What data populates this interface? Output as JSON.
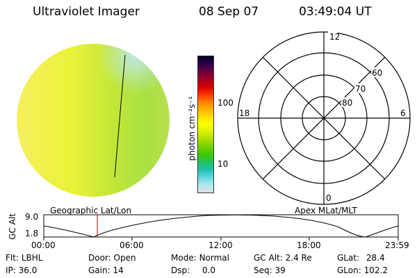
{
  "header": {
    "instrument": "Ultraviolet Imager",
    "date": "08 Sep 07",
    "time": "03:49:04 UT"
  },
  "colorbar": {
    "label": "photon cm⁻²s⁻¹",
    "ticks": [
      "100",
      "10"
    ],
    "colors": [
      "#000020",
      "#2a004a",
      "#6a0040",
      "#a00020",
      "#d00000",
      "#ff3000",
      "#ff8000",
      "#ffb000",
      "#ffe000",
      "#ffff00",
      "#d8f000",
      "#a8e000",
      "#70d000",
      "#40c800",
      "#20c060",
      "#20c0b0",
      "#60d8e0",
      "#b0e8f0",
      "#e0e0e0"
    ]
  },
  "polar_plot": {
    "mlt_labels": {
      "top": "12",
      "left": "18",
      "right": "6",
      "bottom": "0"
    },
    "lat_labels": [
      "60",
      "70",
      "80"
    ]
  },
  "timeline": {
    "axis_title": "GC Alt",
    "yticks": [
      "9.0",
      "1.8"
    ],
    "left_label": "Geographic Lat/Lon",
    "right_label": "Apex MLat/MLT",
    "xticks": [
      "00:00",
      "06:00",
      "12:00",
      "18:00",
      "23:59"
    ],
    "marker_color": "#c00000"
  },
  "status": {
    "row1": [
      {
        "key": "Flt:",
        "value": "LBHL"
      },
      {
        "key": "Door:",
        "value": "Open"
      },
      {
        "key": "Mode:",
        "value": "Normal"
      },
      {
        "key": "GC Alt:",
        "value": "2.4 Re"
      },
      {
        "key": "GLat:",
        "value": "28.4"
      }
    ],
    "row2": [
      {
        "key": "IP:",
        "value": "36.0"
      },
      {
        "key": "Gain:",
        "value": "14"
      },
      {
        "key": "Dsp:",
        "value": "0.0"
      },
      {
        "key": "Seq:",
        "value": "39"
      },
      {
        "key": "GLon:",
        "value": "102.2"
      }
    ]
  }
}
